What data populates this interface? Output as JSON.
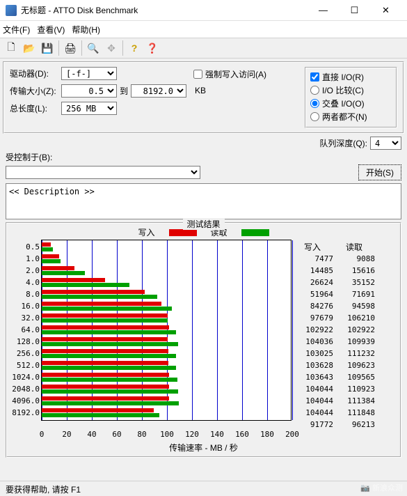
{
  "window": {
    "title": "无标题 - ATTO Disk Benchmark",
    "minimize": "—",
    "maximize": "☐",
    "close": "✕"
  },
  "menu": {
    "file": "文件(F)",
    "view": "查看(V)",
    "help": "帮助(H)"
  },
  "toolbar": {
    "new": "🗋",
    "open": "📂",
    "save": "💾",
    "print": "🖨",
    "find": "🔍",
    "move": "✥",
    "about": "?",
    "whatsthis": "❓"
  },
  "form": {
    "drive_label": "驱动器(D):",
    "drive_value": "[-f-]",
    "force_write": "强制写入访问(A)",
    "xfer_label": "传输大小(Z):",
    "xfer_from": "0.5",
    "xfer_to_label": "到",
    "xfer_to": "8192.0",
    "xfer_unit": "KB",
    "len_label": "总长度(L):",
    "len_value": "256 MB",
    "direct_io": "直接 I/O(R)",
    "io_compare": "I/O 比较(C)",
    "overlapped": "交叠 I/O(O)",
    "neither": "两者都不(N)",
    "queue_label": "队列深度(Q):",
    "queue_value": "4",
    "controlled_label": "受控制于(B):",
    "start": "开始(S)",
    "description": "<< Description >>"
  },
  "results": {
    "title": "测试结果",
    "write_label": "写入",
    "read_label": "读取",
    "write_color": "#e00000",
    "read_color": "#00a000",
    "grid_color": "#0000cc",
    "x_axis_title": "传输速率 - MB / 秒",
    "x_max": 200,
    "x_tick": 20,
    "x_ticks": [
      "0",
      "20",
      "40",
      "60",
      "80",
      "100",
      "120",
      "140",
      "160",
      "180",
      "200"
    ],
    "sizes": [
      "0.5",
      "1.0",
      "2.0",
      "4.0",
      "8.0",
      "16.0",
      "32.0",
      "64.0",
      "128.0",
      "256.0",
      "512.0",
      "1024.0",
      "2048.0",
      "4096.0",
      "8192.0"
    ],
    "write": [
      7477,
      14485,
      26624,
      51964,
      84276,
      97679,
      102922,
      104036,
      103025,
      103628,
      103643,
      104044,
      104044,
      104044,
      91772
    ],
    "read": [
      9088,
      15616,
      35152,
      71691,
      94598,
      106210,
      102922,
      109939,
      111232,
      109623,
      109565,
      110923,
      111384,
      111848,
      96213
    ],
    "val_scale": 1024
  },
  "status": "要获得帮助, 请按 F1",
  "watermark": "📷 新浪众测"
}
